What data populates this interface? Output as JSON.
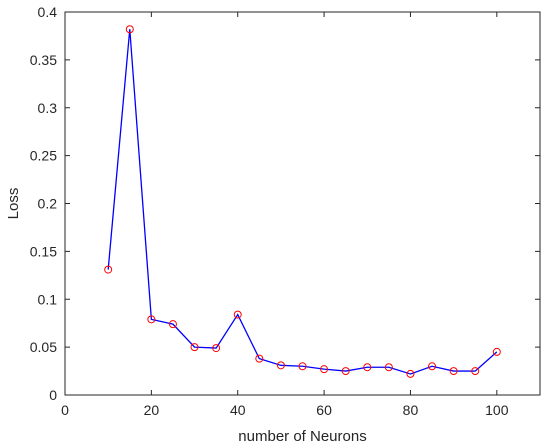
{
  "chart_data": {
    "type": "line",
    "title": "",
    "xlabel": "number of Neurons",
    "ylabel": "Loss",
    "xlim": [
      0,
      110
    ],
    "ylim": [
      0,
      0.4
    ],
    "xticks": [
      0,
      20,
      40,
      60,
      80,
      100
    ],
    "yticks": [
      0,
      0.05,
      0.1,
      0.15,
      0.2,
      0.25,
      0.3,
      0.35,
      0.4
    ],
    "xtick_labels": [
      "0",
      "20",
      "40",
      "60",
      "80",
      "100"
    ],
    "ytick_labels": [
      "0",
      "0.05",
      "0.1",
      "0.15",
      "0.2",
      "0.25",
      "0.3",
      "0.35",
      "0.4"
    ],
    "grid": false,
    "series": [
      {
        "x": [
          10,
          15,
          20,
          25,
          30,
          35,
          40,
          45,
          50,
          55,
          60,
          65,
          70,
          75,
          80,
          85,
          90,
          95,
          100
        ],
        "y": [
          0.131,
          0.382,
          0.079,
          0.074,
          0.05,
          0.049,
          0.084,
          0.038,
          0.031,
          0.03,
          0.027,
          0.025,
          0.029,
          0.029,
          0.022,
          0.03,
          0.025,
          0.025,
          0.045
        ],
        "line_color": "#0000ff",
        "marker": "circle",
        "marker_color": "#ff0000"
      }
    ]
  }
}
